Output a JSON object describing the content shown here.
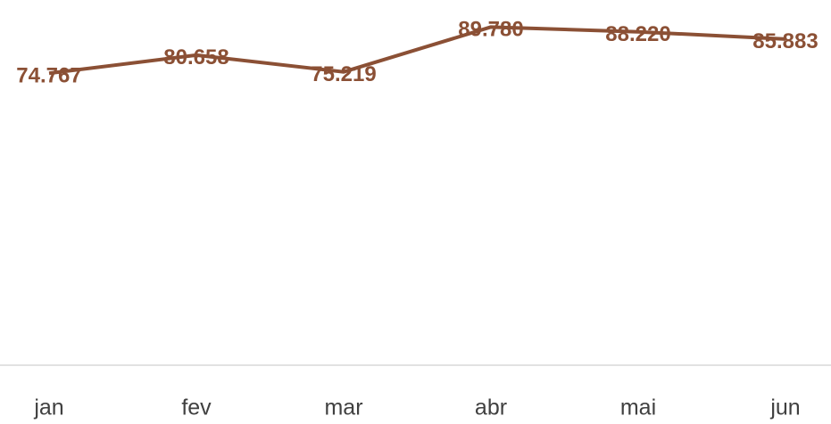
{
  "chart_data": {
    "type": "line",
    "categories": [
      "jan",
      "fev",
      "mar",
      "abr",
      "mai",
      "jun"
    ],
    "series": [
      {
        "color": "#8b5035",
        "values": [
          74767,
          80658,
          75219,
          89780,
          88220,
          85883
        ],
        "value_labels": [
          "74.767",
          "80.658",
          "75.219",
          "89.780",
          "88.220",
          "85.883"
        ]
      }
    ],
    "ylim": [
      -20000,
      100000
    ]
  }
}
